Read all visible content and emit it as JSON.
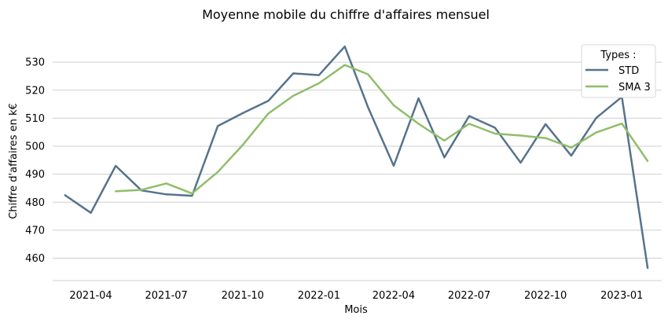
{
  "chart_data": {
    "type": "line",
    "title": "Moyenne mobile du chiffre d'affaires mensuel",
    "xlabel": "Mois",
    "ylabel": "Chiffre d'affaires en k€",
    "ylim": [
      452,
      541
    ],
    "xlim": [
      "2021-02-14",
      "2023-02-18"
    ],
    "grid": "horizontal",
    "yticks": [
      460,
      470,
      480,
      490,
      500,
      510,
      520,
      530
    ],
    "xticks": [
      "2021-04",
      "2021-07",
      "2021-10",
      "2022-01",
      "2022-04",
      "2022-07",
      "2022-10",
      "2023-01"
    ],
    "legend": {
      "title": "Types :",
      "position": "top-right"
    },
    "x": [
      "2021-03-01",
      "2021-04-01",
      "2021-05-01",
      "2021-06-01",
      "2021-07-01",
      "2021-08-01",
      "2021-09-01",
      "2021-10-01",
      "2021-11-01",
      "2021-12-01",
      "2022-01-01",
      "2022-02-01",
      "2022-03-01",
      "2022-04-01",
      "2022-05-01",
      "2022-06-01",
      "2022-07-01",
      "2022-08-01",
      "2022-09-01",
      "2022-10-01",
      "2022-11-01",
      "2022-12-01",
      "2023-01-01",
      "2023-02-01"
    ],
    "series": [
      {
        "name": "STD",
        "color": "#56738c",
        "values": [
          482.5,
          476.2,
          493.0,
          484.2,
          482.8,
          482.3,
          507.2,
          511.8,
          516.2,
          526.0,
          525.4,
          535.6,
          514.0,
          493.0,
          517.1,
          496.0,
          510.8,
          506.6,
          494.1,
          507.9,
          496.6,
          510.1,
          517.6,
          456.5
        ]
      },
      {
        "name": "SMA 3",
        "color": "#8fbe6a",
        "values": [
          null,
          null,
          483.9,
          484.4,
          486.7,
          483.1,
          490.8,
          500.4,
          511.7,
          518.0,
          522.5,
          529.0,
          525.7,
          514.6,
          508.0,
          502.0,
          508.0,
          504.5,
          503.8,
          502.9,
          499.5,
          504.9,
          508.1,
          494.7
        ]
      }
    ]
  }
}
